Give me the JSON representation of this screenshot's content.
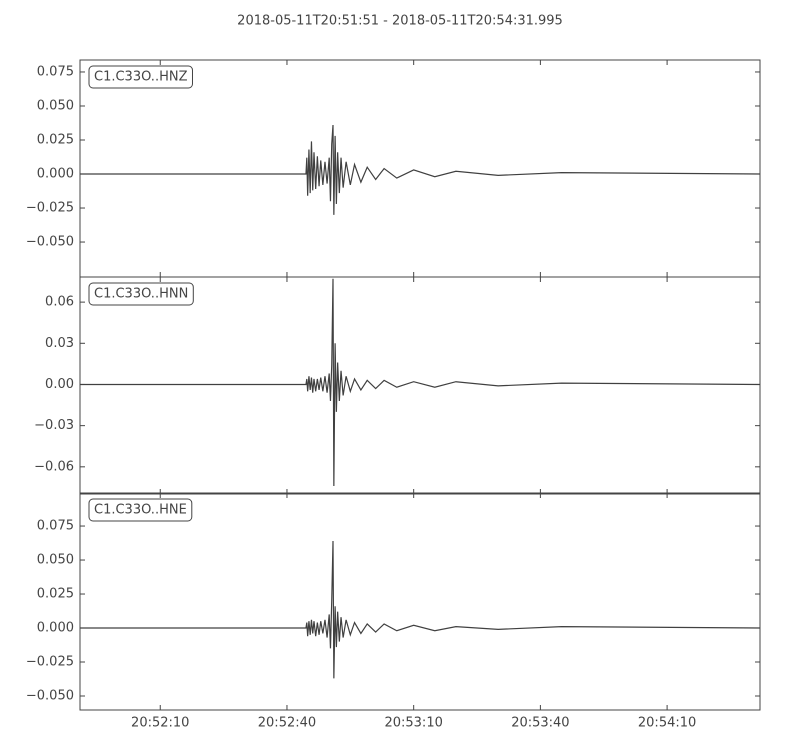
{
  "title": "2018-05-11T20:51:51  -  2018-05-11T20:54:31.995",
  "chart_data": [
    {
      "type": "line",
      "x": [
        "20:51:51",
        "20:52:44.5",
        "20:52:44.7",
        "20:52:44.9",
        "20:52:45.2",
        "20:52:45.5",
        "20:52:45.8",
        "20:52:46.1",
        "20:52:46.4",
        "20:52:46.8",
        "20:52:47.2",
        "20:52:47.6",
        "20:52:48",
        "20:52:48.5",
        "20:52:49",
        "20:52:49.5",
        "20:52:50",
        "20:52:50.3",
        "20:52:50.6",
        "20:52:50.9",
        "20:52:51.1",
        "20:52:51.4",
        "20:52:51.7",
        "20:52:52",
        "20:52:52.4",
        "20:52:52.8",
        "20:52:53.3",
        "20:52:54",
        "20:52:55",
        "20:52:56",
        "20:52:57.5",
        "20:52:59",
        "20:53:01",
        "20:53:03",
        "20:53:06",
        "20:53:10",
        "20:53:15",
        "20:53:20",
        "20:53:30",
        "20:53:45",
        "20:54:31.995"
      ],
      "series": [
        {
          "name": "C1.C33O..HNZ",
          "color": "#404040",
          "values": [
            0,
            0,
            0.012,
            -0.016,
            0.018,
            -0.014,
            0.024,
            -0.012,
            0.016,
            -0.011,
            0.013,
            -0.009,
            0.01,
            -0.008,
            0.009,
            -0.007,
            0.012,
            -0.02,
            0.022,
            0.036,
            -0.03,
            0.028,
            -0.022,
            0.016,
            -0.014,
            0.012,
            -0.01,
            0.009,
            -0.008,
            0.007,
            -0.006,
            0.005,
            -0.004,
            0.004,
            -0.003,
            0.003,
            -0.002,
            0.002,
            -0.001,
            0.001,
            0
          ]
        }
      ],
      "xlim": [
        "20:51:51",
        "20:54:31.995"
      ],
      "ylim": [
        -0.0757,
        0.0838
      ],
      "yticks": [
        {
          "value": -0.05,
          "label": "−0.050"
        },
        {
          "value": -0.025,
          "label": "−0.025"
        },
        {
          "value": 0,
          "label": "0.000"
        },
        {
          "value": 0.025,
          "label": "0.025"
        },
        {
          "value": 0.05,
          "label": "0.050"
        },
        {
          "value": 0.075,
          "label": "0.075"
        }
      ]
    },
    {
      "type": "line",
      "x": [
        "20:51:51",
        "20:52:44.5",
        "20:52:44.7",
        "20:52:44.9",
        "20:52:45.2",
        "20:52:45.5",
        "20:52:45.8",
        "20:52:46.1",
        "20:52:46.4",
        "20:52:46.8",
        "20:52:47.2",
        "20:52:47.6",
        "20:52:48",
        "20:52:48.5",
        "20:52:49",
        "20:52:49.5",
        "20:52:50",
        "20:52:50.3",
        "20:52:50.6",
        "20:52:50.9",
        "20:52:51.1",
        "20:52:51.4",
        "20:52:51.7",
        "20:52:52",
        "20:52:52.4",
        "20:52:52.8",
        "20:52:53.3",
        "20:52:54",
        "20:52:55",
        "20:52:56",
        "20:52:57.5",
        "20:52:59",
        "20:53:01",
        "20:53:03",
        "20:53:06",
        "20:53:10",
        "20:53:15",
        "20:53:20",
        "20:53:30",
        "20:53:45",
        "20:54:31.995"
      ],
      "series": [
        {
          "name": "C1.C33O..HNN",
          "color": "#404040",
          "values": [
            0,
            0,
            0.004,
            -0.005,
            0.006,
            -0.004,
            0.005,
            -0.006,
            0.004,
            -0.005,
            0.004,
            -0.004,
            0.005,
            -0.005,
            0.006,
            -0.006,
            0.008,
            -0.012,
            0.014,
            0.077,
            -0.074,
            0.03,
            -0.02,
            0.016,
            -0.012,
            0.01,
            -0.008,
            0.006,
            -0.005,
            0.004,
            -0.004,
            0.003,
            -0.003,
            0.003,
            -0.002,
            0.002,
            -0.002,
            0.002,
            -0.001,
            0.001,
            0
          ]
        }
      ],
      "xlim": [
        "20:51:51",
        "20:54:31.995"
      ],
      "ylim": [
        -0.0798,
        0.0783
      ],
      "yticks": [
        {
          "value": -0.06,
          "label": "−0.06"
        },
        {
          "value": -0.03,
          "label": "−0.03"
        },
        {
          "value": 0,
          "label": "0.00"
        },
        {
          "value": 0.03,
          "label": "0.03"
        },
        {
          "value": 0.06,
          "label": "0.06"
        }
      ]
    },
    {
      "type": "line",
      "x": [
        "20:51:51",
        "20:52:44.5",
        "20:52:44.7",
        "20:52:44.9",
        "20:52:45.2",
        "20:52:45.5",
        "20:52:45.8",
        "20:52:46.1",
        "20:52:46.4",
        "20:52:46.8",
        "20:52:47.2",
        "20:52:47.6",
        "20:52:48",
        "20:52:48.5",
        "20:52:49",
        "20:52:49.5",
        "20:52:50",
        "20:52:50.3",
        "20:52:50.6",
        "20:52:50.9",
        "20:52:51.1",
        "20:52:51.4",
        "20:52:51.7",
        "20:52:52",
        "20:52:52.4",
        "20:52:52.8",
        "20:52:53.3",
        "20:52:54",
        "20:52:55",
        "20:52:56",
        "20:52:57.5",
        "20:52:59",
        "20:53:01",
        "20:53:03",
        "20:53:06",
        "20:53:10",
        "20:53:15",
        "20:53:20",
        "20:53:30",
        "20:53:45",
        "20:54:31.995"
      ],
      "series": [
        {
          "name": "C1.C33O..HNE",
          "color": "#404040",
          "values": [
            0,
            0,
            0.004,
            -0.006,
            0.005,
            -0.005,
            0.006,
            -0.004,
            0.005,
            -0.006,
            0.004,
            -0.005,
            0.005,
            -0.004,
            0.006,
            -0.007,
            0.01,
            -0.015,
            0.02,
            0.064,
            -0.037,
            0.016,
            -0.014,
            0.012,
            -0.01,
            0.008,
            -0.007,
            0.006,
            -0.005,
            0.004,
            -0.004,
            0.003,
            -0.003,
            0.003,
            -0.002,
            0.002,
            -0.002,
            0.001,
            -0.001,
            0.001,
            0
          ]
        }
      ],
      "xlim": [
        "20:51:51",
        "20:54:31.995"
      ],
      "xticks": [
        "20:52:10",
        "20:52:40",
        "20:53:10",
        "20:53:40",
        "20:54:10"
      ],
      "ylim": [
        -0.0603,
        0.0993
      ],
      "yticks": [
        {
          "value": -0.05,
          "label": "−0.050"
        },
        {
          "value": -0.025,
          "label": "−0.025"
        },
        {
          "value": 0,
          "label": "0.000"
        },
        {
          "value": 0.025,
          "label": "0.025"
        },
        {
          "value": 0.05,
          "label": "0.050"
        },
        {
          "value": 0.075,
          "label": "0.075"
        }
      ]
    }
  ]
}
